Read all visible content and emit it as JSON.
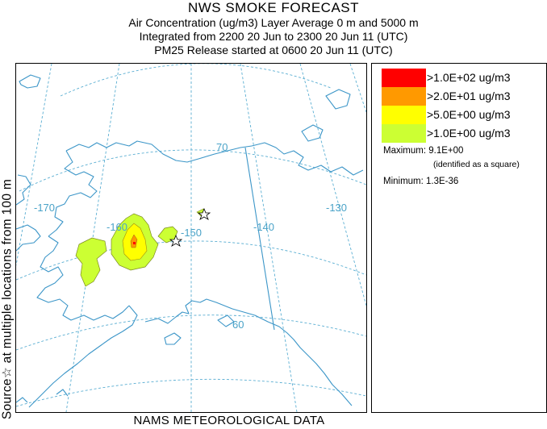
{
  "header": {
    "title": "NWS SMOKE FORECAST",
    "line2": "Air Concentration (ug/m3) Layer Average    0 m and  5000 m",
    "line3": "Integrated from 2200 20 Jun to 2300 20 Jun 11 (UTC)",
    "line4": "PM25 Release started at 0600 20 Jun 11 (UTC)"
  },
  "side_label": "Source☆ at multiple locations   from   100 m",
  "map": {
    "grid_labels": {
      "lon_170": "-170",
      "lon_160": "-160",
      "lon_150": "-150",
      "lon_140": "-140",
      "lon_130": "-130",
      "lat_70": "70",
      "lat_60": "60"
    },
    "source_markers": [
      "star",
      "star"
    ],
    "colors": {
      "graticule": "#5aaed2",
      "coastline": "#3c96c8",
      "level_1": "#ccff33",
      "level_2": "#ffff00",
      "level_3": "#ff9900",
      "level_4": "#ff0000"
    }
  },
  "legend": {
    "items": [
      {
        "label": ">1.0E+02 ug/m3",
        "color": "#ff0000"
      },
      {
        "label": ">2.0E+01 ug/m3",
        "color": "#ff9900"
      },
      {
        "label": ">5.0E+00 ug/m3",
        "color": "#ffff00"
      },
      {
        "label": ">1.0E+00 ug/m3",
        "color": "#ccff33"
      }
    ],
    "maximum": "Maximum: 9.1E+00",
    "maximum_note": "(identified as a square)",
    "minimum": "Minimum: 1.3E-36"
  },
  "footer": "NAMS METEOROLOGICAL DATA"
}
